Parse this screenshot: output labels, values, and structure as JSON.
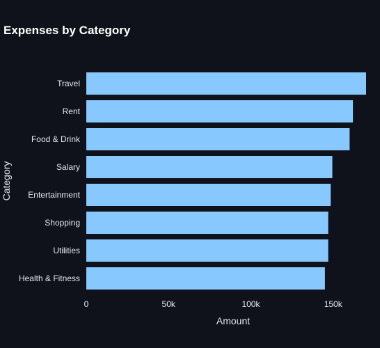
{
  "chart_data": {
    "type": "bar",
    "orientation": "horizontal",
    "title": "Expenses by Category",
    "xlabel": "Amount",
    "ylabel": "Category",
    "categories": [
      "Travel",
      "Rent",
      "Food & Drink",
      "Salary",
      "Entertainment",
      "Shopping",
      "Utilities",
      "Health & Fitness"
    ],
    "values": [
      170000,
      162000,
      160000,
      149500,
      148500,
      147000,
      147000,
      145000
    ],
    "xlim": [
      0,
      170000
    ],
    "xticks": [
      0,
      50000,
      100000,
      150000
    ],
    "xtick_labels": [
      "0",
      "50k",
      "100k",
      "150k"
    ],
    "bar_color": "#87c8ff",
    "background_color": "#0f121a",
    "text_color": "#e6e8ee",
    "grid": false,
    "legend": "none"
  }
}
